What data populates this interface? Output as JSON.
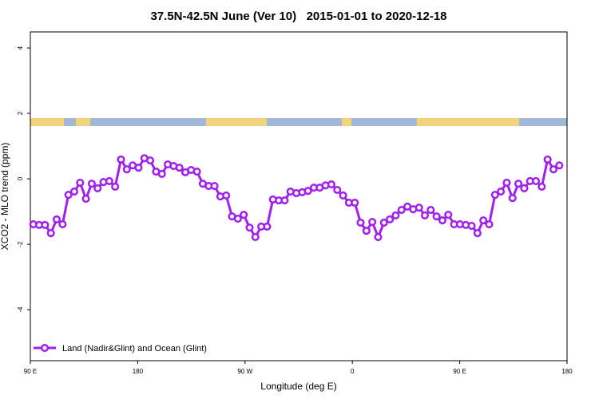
{
  "chart_data": {
    "type": "line",
    "title": "37.5N-42.5N June (Ver 10)   2015-01-01 to 2020-12-18",
    "x_label": "Longitude (deg E)",
    "y_label": "XCO2 - MLO trend (ppm)",
    "xlim": [
      90,
      540
    ],
    "ylim": [
      -5.56,
      4.49
    ],
    "xticks": [
      {
        "value": 90,
        "label": "90 E"
      },
      180,
      {
        "value": 270,
        "label": "90 W"
      },
      {
        "value": 360,
        "label": "0"
      },
      {
        "value": 450,
        "label": "90 E"
      },
      {
        "value": 540,
        "label": "180"
      }
    ],
    "yticks": [
      -4,
      -2,
      0,
      2,
      4
    ],
    "legend": "bottom-left",
    "x": [
      92.5,
      97.4,
      102.3,
      107.2,
      112.1,
      117,
      121.9,
      126.8,
      131.7,
      136.6,
      141.5,
      146.4,
      151.3,
      156.2,
      161.1,
      166,
      170.9,
      175.8,
      180.7,
      185.6,
      190.5,
      195.4,
      200.3,
      205.2,
      210.1,
      215,
      219.9,
      224.8,
      229.7,
      234.6,
      239.5,
      244.4,
      249.3,
      254.2,
      259.1,
      264,
      268.9,
      273.8,
      278.7,
      283.6,
      288.5,
      293.4,
      298.3,
      303.2,
      308.1,
      313,
      317.9,
      322.8,
      327.7,
      332.6,
      337.5,
      342.4,
      347.3,
      352.2,
      357.1,
      362,
      366.9,
      371.8,
      376.7,
      381.6,
      386.5,
      391.4,
      396.3,
      401.2,
      406.1,
      411,
      415.9,
      420.8,
      425.7,
      430.6,
      435.5,
      440.4,
      445.3,
      450.2,
      455.1,
      460,
      464.9,
      469.8,
      474.7,
      479.6,
      484.5,
      489.4,
      494.3,
      499.2,
      504.1,
      509,
      513.9,
      518.8,
      523.7,
      528.6,
      533.5
    ],
    "series": [
      {
        "name": "Land (Nadir&Glint) and Ocean (Glint)",
        "color": "#a020f0",
        "values": [
          -1.39,
          -1.41,
          -1.41,
          -1.66,
          -1.24,
          -1.39,
          -0.49,
          -0.39,
          -0.12,
          -0.61,
          -0.15,
          -0.29,
          -0.1,
          -0.07,
          -0.24,
          0.59,
          0.29,
          0.41,
          0.34,
          0.63,
          0.56,
          0.22,
          0.15,
          0.44,
          0.39,
          0.34,
          0.2,
          0.27,
          0.22,
          -0.15,
          -0.22,
          -0.22,
          -0.54,
          -0.51,
          -1.15,
          -1.22,
          -1.1,
          -1.49,
          -1.78,
          -1.46,
          -1.46,
          -0.63,
          -0.66,
          -0.66,
          -0.39,
          -0.44,
          -0.41,
          -0.37,
          -0.27,
          -0.27,
          -0.2,
          -0.17,
          -0.34,
          -0.51,
          -0.73,
          -0.73,
          -1.34,
          -1.59,
          -1.32,
          -1.78,
          -1.34,
          -1.24,
          -1.12,
          -0.95,
          -0.85,
          -0.93,
          -0.88,
          -1.12,
          -0.95,
          -1.15,
          -1.27,
          -1.1,
          -1.39,
          -1.39,
          -1.41,
          -1.44,
          -1.66,
          -1.27,
          -1.39,
          -0.49,
          -0.39,
          -0.12,
          -0.59,
          -0.15,
          -0.29,
          -0.07,
          -0.07,
          -0.24,
          0.59,
          0.29,
          0.41
        ]
      }
    ]
  }
}
